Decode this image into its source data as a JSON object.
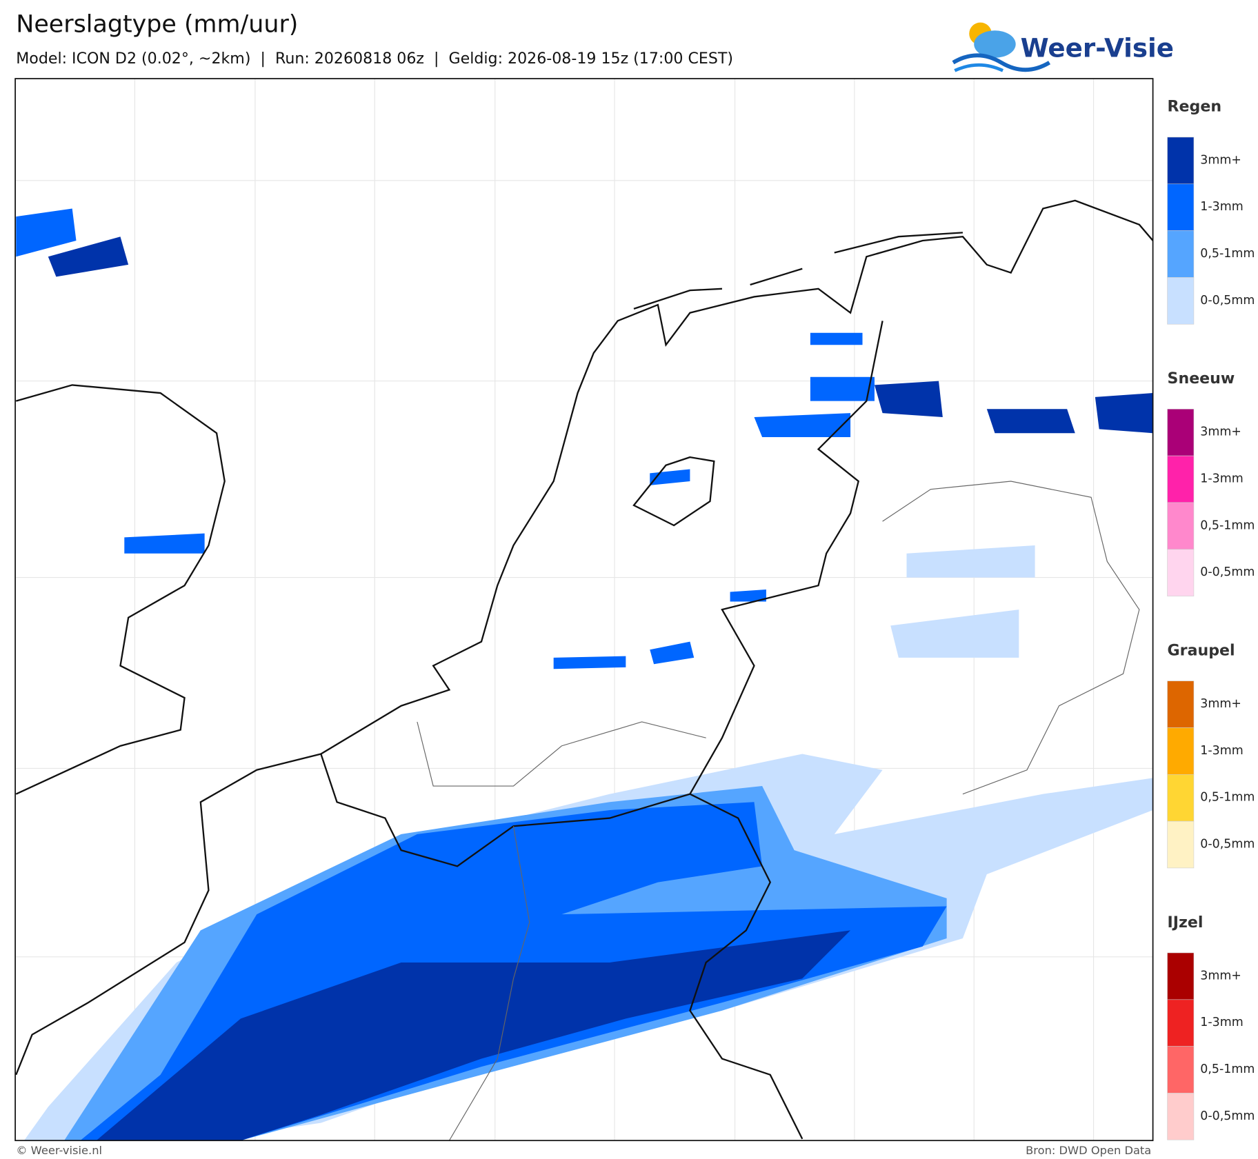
{
  "header": {
    "title": "Neerslagtype (mm/uur)",
    "subtitle": "Model: ICON D2 (0.02°, ~2km)  |  Run: 20260818 06z  |  Geldig: 2026-08-19 15z (17:00 CEST)",
    "logo": "Weer-Visie"
  },
  "legend": [
    {
      "title": "Regen",
      "items": [
        {
          "label": "3mm+",
          "color": "#0033aa"
        },
        {
          "label": "1-3mm",
          "color": "#0066ff"
        },
        {
          "label": "0,5-1mm",
          "color": "#55a5ff"
        },
        {
          "label": "0-0,5mm",
          "color": "#c8e0ff"
        }
      ]
    },
    {
      "title": "Sneeuw",
      "items": [
        {
          "label": "3mm+",
          "color": "#aa0077"
        },
        {
          "label": "1-3mm",
          "color": "#ff22aa"
        },
        {
          "label": "0,5-1mm",
          "color": "#ff88cc"
        },
        {
          "label": "0-0,5mm",
          "color": "#ffd5ee"
        }
      ]
    },
    {
      "title": "Graupel",
      "items": [
        {
          "label": "3mm+",
          "color": "#dd6600"
        },
        {
          "label": "1-3mm",
          "color": "#ffaa00"
        },
        {
          "label": "0,5-1mm",
          "color": "#ffd633"
        },
        {
          "label": "0-0,5mm",
          "color": "#fff2c4"
        }
      ]
    },
    {
      "title": "IJzel",
      "items": [
        {
          "label": "3mm+",
          "color": "#aa0000"
        },
        {
          "label": "1-3mm",
          "color": "#ee2222"
        },
        {
          "label": "0,5-1mm",
          "color": "#ff6666"
        },
        {
          "label": "0-0,5mm",
          "color": "#ffcccc"
        }
      ]
    }
  ],
  "footer": {
    "left": "© Weer-visie.nl",
    "right": "Bron: DWD Open Data"
  }
}
